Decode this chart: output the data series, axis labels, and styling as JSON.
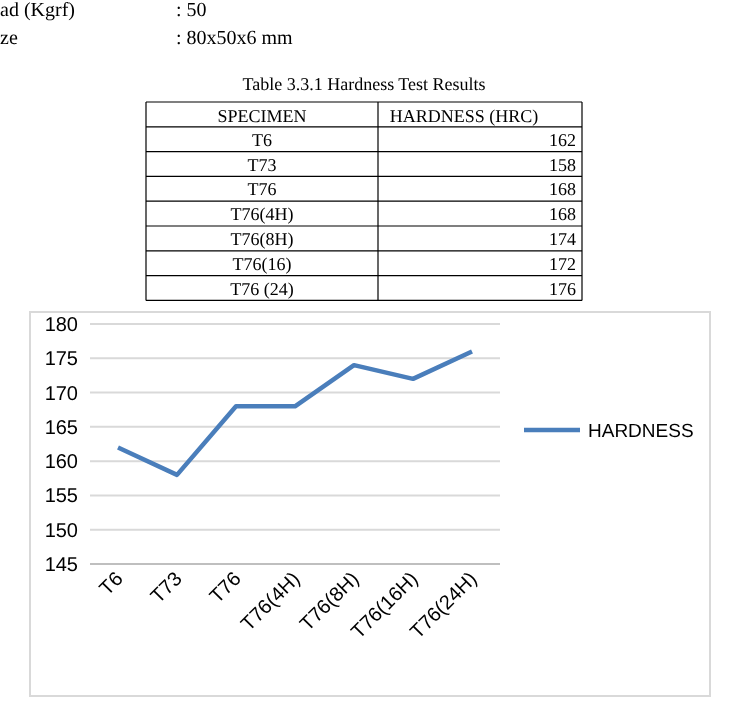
{
  "chart_data": {
    "type": "line",
    "annotations": [
      "ad (Kgrf)",
      ": 50",
      "ze",
      ": 80x50x6 mm",
      "Table 3.3.1 Hardness Test Results",
      "SPECIMEN",
      "HARDNESS (HRC)",
      "T6",
      "T73",
      "T76",
      "T76(4H)",
      "T76(8H)",
      "T76(16)",
      "T76 (24)",
      "162",
      "158",
      "168",
      "168",
      "174",
      "172",
      "176"
    ],
    "categories": [
      "T6",
      "T73",
      "T76",
      "T76(4H)",
      "T76(8H)",
      "T76(16H)",
      "T76(24H)"
    ],
    "series": [
      {
        "name": "HARDNESS",
        "color": "#4a7ebb",
        "values": [
          162,
          158,
          168,
          168,
          174,
          172,
          176
        ]
      }
    ],
    "ylim": [
      145,
      180
    ],
    "yticks": [
      145,
      150,
      155,
      160,
      165,
      170,
      175,
      180
    ],
    "grid": "y",
    "legend": "right",
    "marker": "none",
    "line_style": "solid"
  }
}
